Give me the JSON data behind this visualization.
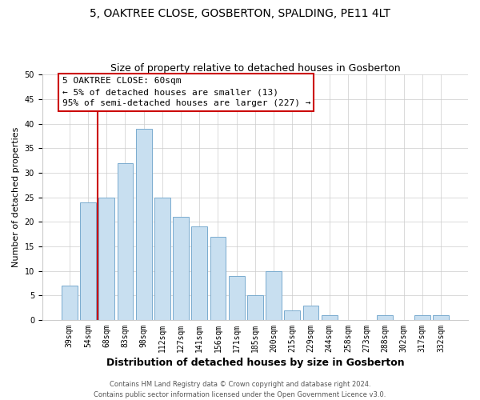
{
  "title": "5, OAKTREE CLOSE, GOSBERTON, SPALDING, PE11 4LT",
  "subtitle": "Size of property relative to detached houses in Gosberton",
  "xlabel": "Distribution of detached houses by size in Gosberton",
  "ylabel": "Number of detached properties",
  "bar_labels": [
    "39sqm",
    "54sqm",
    "68sqm",
    "83sqm",
    "98sqm",
    "112sqm",
    "127sqm",
    "141sqm",
    "156sqm",
    "171sqm",
    "185sqm",
    "200sqm",
    "215sqm",
    "229sqm",
    "244sqm",
    "258sqm",
    "273sqm",
    "288sqm",
    "302sqm",
    "317sqm",
    "332sqm"
  ],
  "bar_values": [
    7,
    24,
    25,
    32,
    39,
    25,
    21,
    19,
    17,
    9,
    5,
    10,
    2,
    3,
    1,
    0,
    0,
    1,
    0,
    1,
    1
  ],
  "bar_color": "#c8dff0",
  "bar_edge_color": "#7aabcf",
  "vline_x_idx": 1,
  "vline_color": "#cc0000",
  "ylim": [
    0,
    50
  ],
  "yticks": [
    0,
    5,
    10,
    15,
    20,
    25,
    30,
    35,
    40,
    45,
    50
  ],
  "annotation_title": "5 OAKTREE CLOSE: 60sqm",
  "annotation_line1": "← 5% of detached houses are smaller (13)",
  "annotation_line2": "95% of semi-detached houses are larger (227) →",
  "annotation_box_color": "#ffffff",
  "annotation_box_edge": "#cc0000",
  "footer_line1": "Contains HM Land Registry data © Crown copyright and database right 2024.",
  "footer_line2": "Contains public sector information licensed under the Open Government Licence v3.0.",
  "title_fontsize": 10,
  "subtitle_fontsize": 9,
  "xlabel_fontsize": 9,
  "ylabel_fontsize": 8,
  "tick_fontsize": 7,
  "footer_fontsize": 6,
  "ann_fontsize": 8
}
